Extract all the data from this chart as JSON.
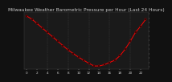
{
  "title": "Milwaukee Weather Barometric Pressure per Hour (Last 24 Hours)",
  "background_color": "#111111",
  "plot_bg_color": "#1a1a1a",
  "line_color": "#ff0000",
  "marker_color": "#000000",
  "marker_edge_color": "#cc0000",
  "grid_color": "#444444",
  "text_color": "#cccccc",
  "hours": [
    0,
    1,
    2,
    3,
    4,
    5,
    6,
    7,
    8,
    9,
    10,
    11,
    12,
    13,
    14,
    15,
    16,
    17,
    18,
    19,
    20,
    21,
    22,
    23
  ],
  "pressure": [
    29.95,
    29.88,
    29.78,
    29.68,
    29.58,
    29.48,
    29.38,
    29.28,
    29.18,
    29.1,
    29.02,
    28.95,
    28.88,
    28.82,
    28.82,
    28.85,
    28.9,
    28.95,
    29.05,
    29.2,
    29.38,
    29.58,
    29.72,
    29.88
  ],
  "ylim": [
    28.75,
    30.05
  ],
  "xlim": [
    -0.5,
    23.5
  ],
  "xtick_positions": [
    0,
    2,
    4,
    6,
    8,
    10,
    12,
    14,
    16,
    18,
    20,
    22
  ],
  "xtick_labels": [
    "0",
    "2",
    "4",
    "6",
    "8",
    "10",
    "12",
    "14",
    "16",
    "18",
    "20",
    "22"
  ],
  "vgrid_positions": [
    4,
    8,
    12,
    16,
    20
  ],
  "title_fontsize": 4.2,
  "tick_fontsize": 3.0,
  "linewidth": 0.7,
  "markersize": 1.8
}
